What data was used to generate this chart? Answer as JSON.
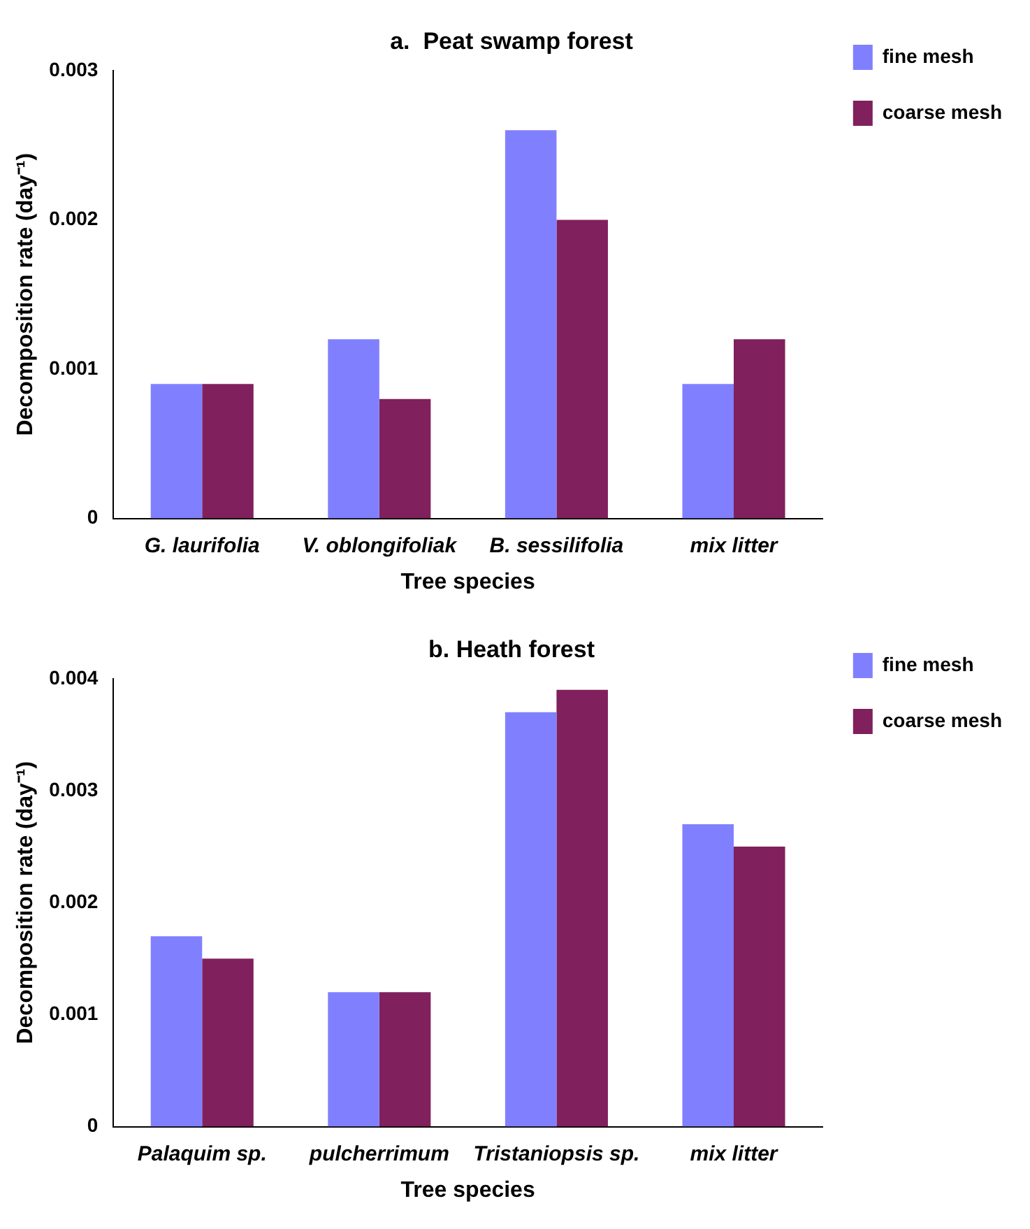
{
  "chart_data": [
    {
      "type": "bar",
      "title": "a.  Peat swamp forest",
      "xlabel": "Tree species",
      "ylabel": "Decomposition rate (day⁻¹)",
      "categories": [
        "G. laurifolia",
        "V. oblongifoliak",
        "B. sessilifolia",
        "mix litter"
      ],
      "series": [
        {
          "name": "fine mesh",
          "color": "#8080ff",
          "values": [
            0.0009,
            0.0012,
            0.0026,
            0.0009
          ]
        },
        {
          "name": "coarse mesh",
          "color": "#80205c",
          "values": [
            0.0009,
            0.0008,
            0.002,
            0.0012
          ]
        }
      ],
      "ylim": [
        0,
        0.003
      ],
      "yticks": [
        0,
        0.001,
        0.002,
        0.003
      ],
      "grid": false,
      "legend": "top right"
    },
    {
      "type": "bar",
      "title": "b. Heath forest",
      "xlabel": "Tree species",
      "ylabel": "Decomposition rate (day⁻¹)",
      "categories": [
        "Palaquim sp.",
        "pulcherrimum",
        "Tristaniopsis sp.",
        "mix litter"
      ],
      "series": [
        {
          "name": "fine mesh",
          "color": "#8080ff",
          "values": [
            0.0017,
            0.0012,
            0.0037,
            0.0027
          ]
        },
        {
          "name": "coarse mesh",
          "color": "#80205c",
          "values": [
            0.0015,
            0.0012,
            0.0039,
            0.0025
          ]
        }
      ],
      "ylim": [
        0,
        0.004
      ],
      "yticks": [
        0,
        0.001,
        0.002,
        0.003,
        0.004
      ],
      "grid": false,
      "legend": "top right"
    }
  ]
}
